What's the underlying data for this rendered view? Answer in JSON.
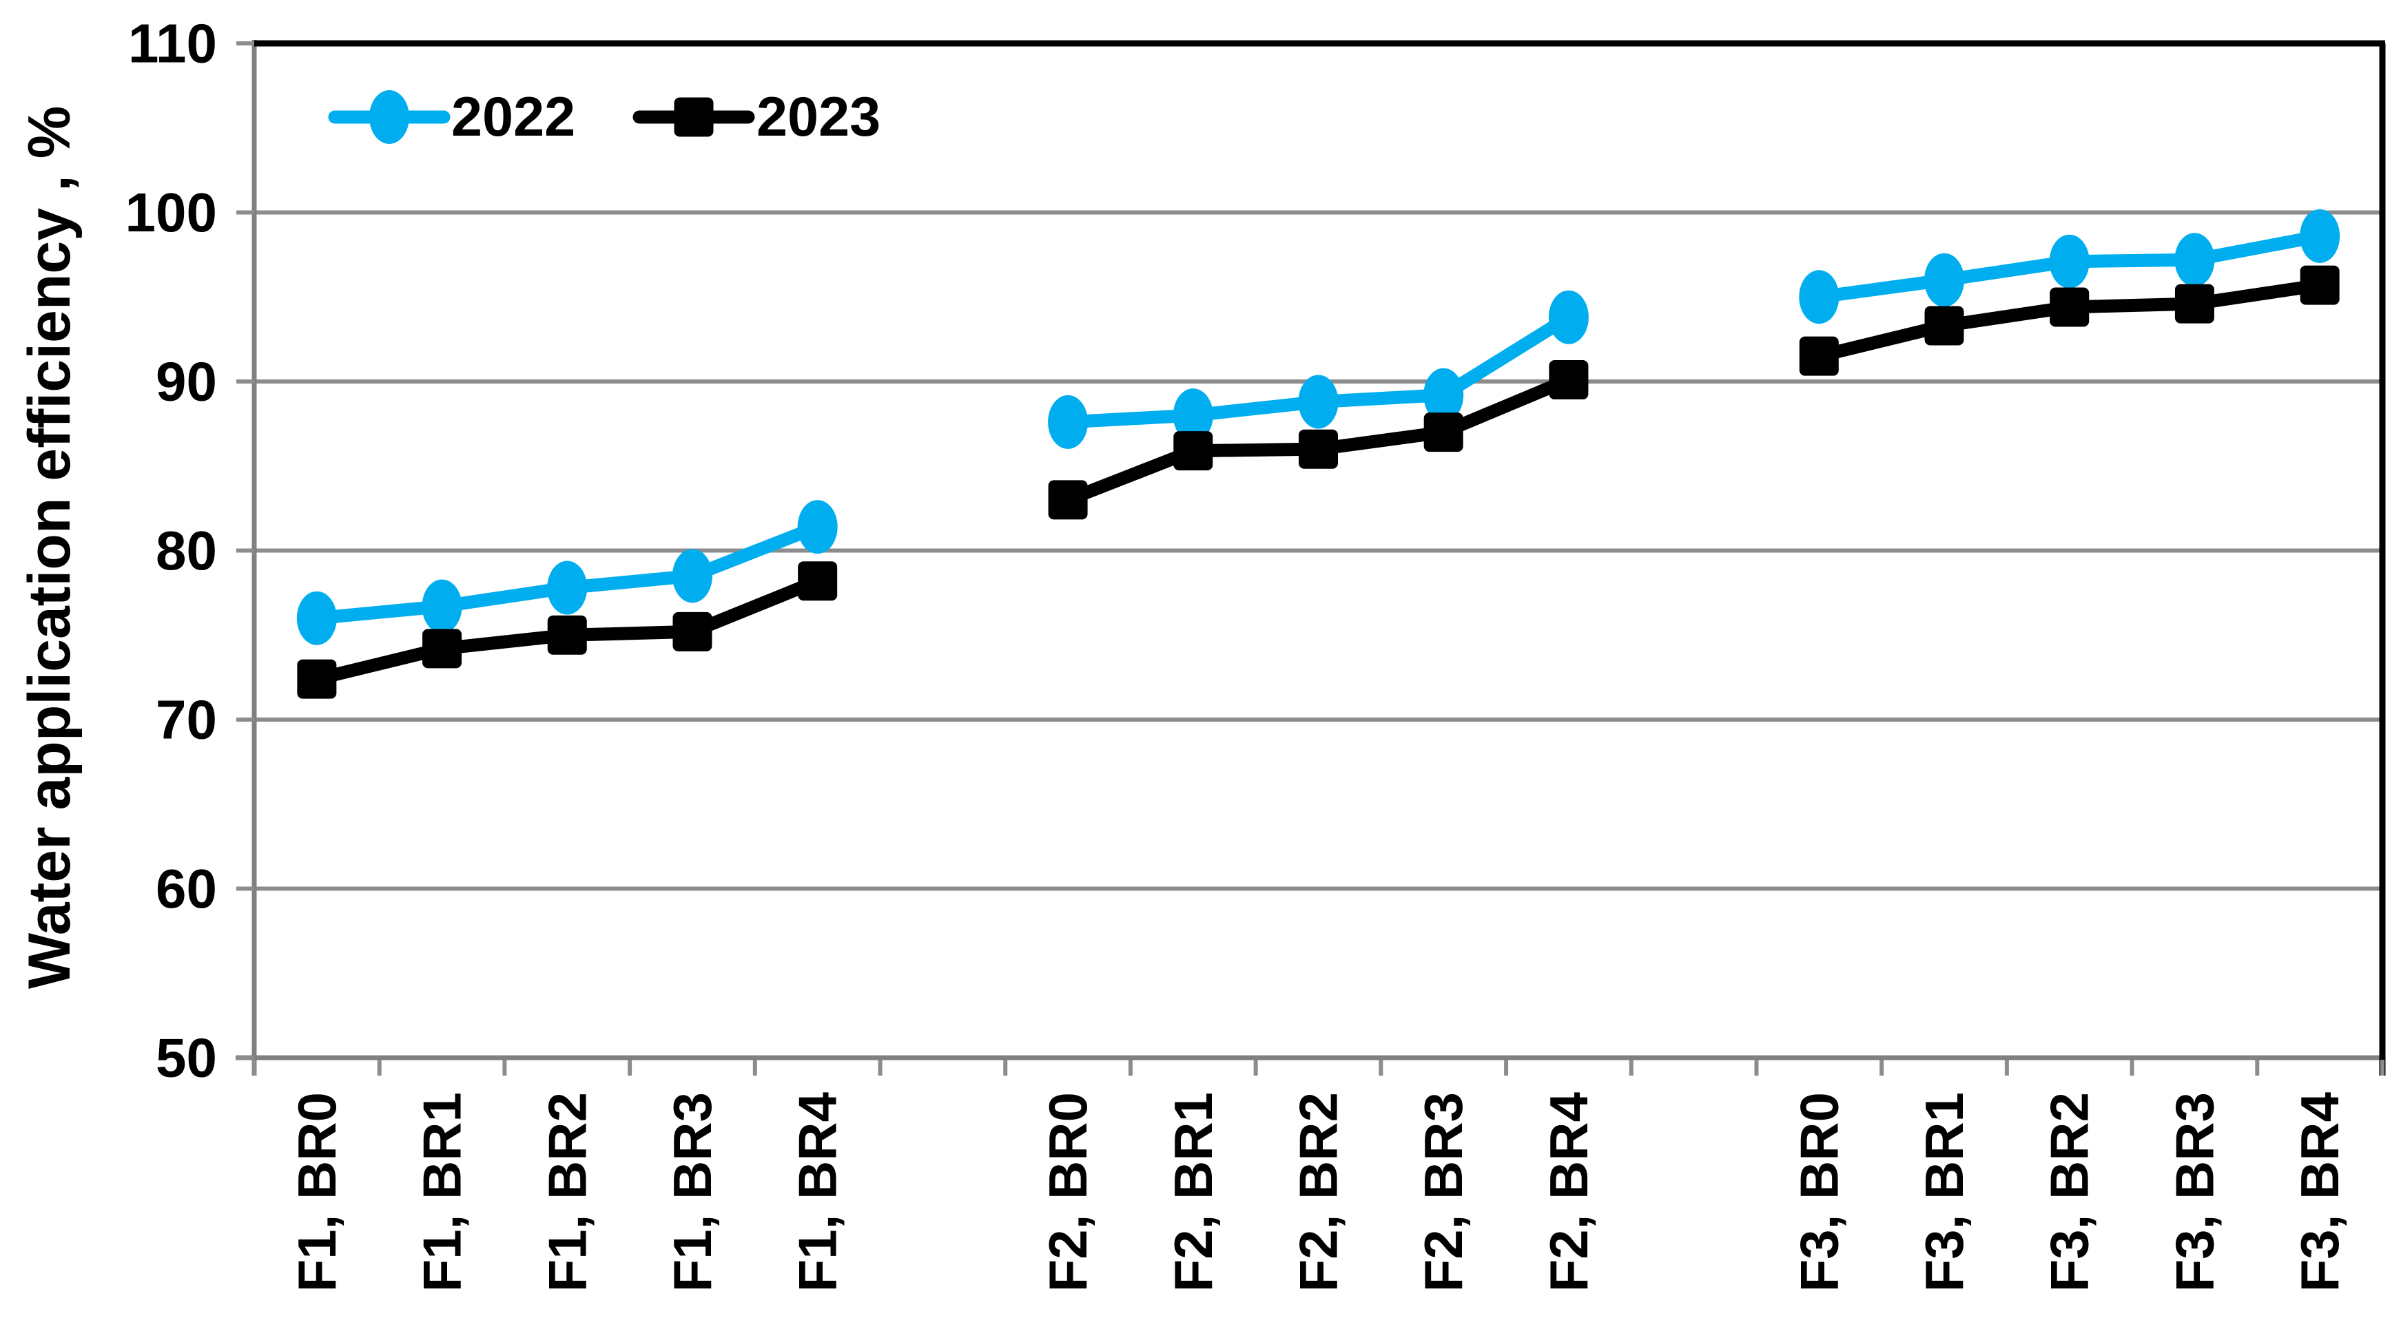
{
  "chart_data": {
    "type": "line",
    "title": "",
    "xlabel": "",
    "ylabel": "Water application efficiency , %",
    "ylim": [
      50,
      110
    ],
    "ytick_step": 10,
    "yticks": [
      50,
      60,
      70,
      80,
      90,
      100,
      110
    ],
    "grid": "horizontal",
    "legend_position": "top-left-inside",
    "categories": [
      "F1, BR0",
      "F1, BR1",
      "F1, BR2",
      "F1, BR3",
      "F1, BR4",
      "",
      "F2, BR0",
      "F2, BR1",
      "F2, BR2",
      "F2, BR3",
      "F2, BR4",
      "",
      "F3, BR0",
      "F3, BR1",
      "F3, BR2",
      "F3, BR3",
      "F3, BR4"
    ],
    "series": [
      {
        "name": "2022",
        "color": "#00AEEF",
        "marker": "circle",
        "values": [
          76.0,
          76.7,
          77.8,
          78.5,
          81.4,
          null,
          87.6,
          88.0,
          88.8,
          89.2,
          93.8,
          null,
          95.0,
          96.0,
          97.1,
          97.2,
          98.6
        ]
      },
      {
        "name": "2023",
        "color": "#000000",
        "marker": "square",
        "values": [
          72.4,
          74.2,
          75.0,
          75.2,
          78.2,
          null,
          83.0,
          85.9,
          86.0,
          87.0,
          90.1,
          null,
          91.5,
          93.3,
          94.4,
          94.6,
          95.7
        ]
      }
    ]
  },
  "colors": {
    "background": "#ffffff",
    "gridline": "#8C8C8C",
    "axis": "#808080",
    "frame_top": "#000000",
    "frame_right": "#000000",
    "tick": "#8C8C8C",
    "text": "#000000"
  }
}
